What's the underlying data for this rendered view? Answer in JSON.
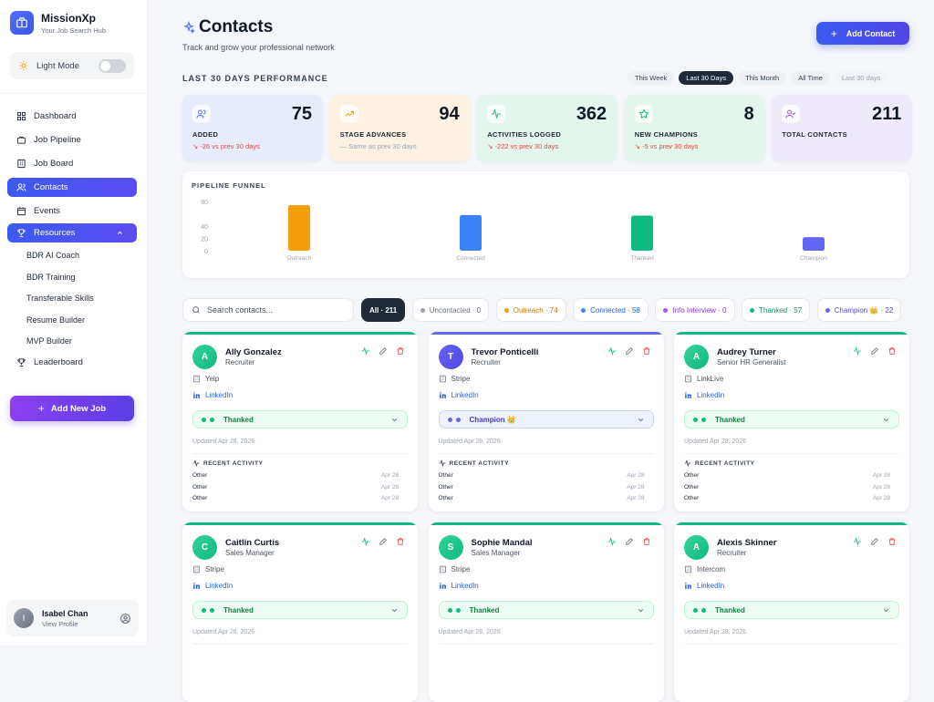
{
  "brand": {
    "name": "MissionXp",
    "tagline": "Your Job Search Hub"
  },
  "mode": {
    "label": "Light Mode"
  },
  "nav": {
    "items": [
      {
        "label": "Dashboard",
        "icon": "dashboard-icon"
      },
      {
        "label": "Job Pipeline",
        "icon": "briefcase-icon"
      },
      {
        "label": "Job Board",
        "icon": "building-icon"
      },
      {
        "label": "Contacts",
        "icon": "users-icon",
        "active": true
      },
      {
        "label": "Events",
        "icon": "calendar-icon"
      }
    ],
    "resources": {
      "label": "Resources",
      "icon": "trophy-icon"
    },
    "sub": [
      "BDR AI Coach",
      "BDR Training",
      "Transferable Skills",
      "Resume Builder",
      "MVP Builder"
    ],
    "leaderboard": {
      "label": "Leaderboard",
      "icon": "trophy-icon"
    }
  },
  "add_job": {
    "label": "Add New Job"
  },
  "profile": {
    "initial": "I",
    "name": "Isabel Chan",
    "sub": "View Profile"
  },
  "header": {
    "title": "Contacts",
    "subtitle": "Track and grow your professional network",
    "add_label": "Add Contact"
  },
  "performance": {
    "title": "LAST 30 DAYS PERFORMANCE",
    "periods": [
      "This Week",
      "Last 30 Days",
      "This Month",
      "All Time",
      "Last 30 days"
    ],
    "active_period": 1,
    "stats": [
      {
        "value": "75",
        "label": "ADDED",
        "delta": "-26 vs prev 30 days",
        "tone": "neg",
        "bg": "#e7ecfb",
        "icon_color": "#4f6ef7"
      },
      {
        "value": "94",
        "label": "STAGE ADVANCES",
        "delta": "Same as prev 30 days",
        "tone": "neu",
        "bg": "#fdf1e2",
        "icon_color": "#f59e0b"
      },
      {
        "value": "362",
        "label": "ACTIVITIES LOGGED",
        "delta": "-222 vs prev 30 days",
        "tone": "neg",
        "bg": "#e2f6ee",
        "icon_color": "#10b981"
      },
      {
        "value": "8",
        "label": "NEW CHAMPIONS",
        "delta": "-5 vs prev 30 days",
        "tone": "neg",
        "bg": "#e4f6ec",
        "icon_color": "#10b981"
      },
      {
        "value": "211",
        "label": "TOTAL CONTACTS",
        "delta": "",
        "tone": "neu",
        "bg": "#efeafb",
        "icon_color": "#a855f7"
      }
    ]
  },
  "chart_data": {
    "type": "bar",
    "title": "PIPELINE FUNNEL",
    "categories": [
      "Outreach",
      "Connected",
      "Thanked",
      "Champion"
    ],
    "values": [
      74,
      58,
      57,
      22
    ],
    "colors": [
      "#f59e0b",
      "#3b82f6",
      "#10b981",
      "#6366f1"
    ],
    "yticks": [
      0,
      20,
      40,
      80
    ],
    "ylim": [
      0,
      80
    ],
    "grid": false
  },
  "search": {
    "placeholder": "Search contacts..."
  },
  "filters": [
    {
      "label": "All · 211",
      "active": true,
      "dot": "",
      "color": "#fff"
    },
    {
      "label": "Uncontacted · 0",
      "dot": "#9ca3af",
      "color": "#6b7280"
    },
    {
      "label": "Outreach · 74",
      "dot": "#f59e0b",
      "color": "#d97706"
    },
    {
      "label": "Connected · 58",
      "dot": "#3b82f6",
      "color": "#2563eb"
    },
    {
      "label": "Info Interview · 0",
      "dot": "#a855f7",
      "color": "#9333ea"
    },
    {
      "label": "Thanked · 57",
      "dot": "#10b981",
      "color": "#059669"
    },
    {
      "label": "Champion 👑 · 22",
      "dot": "#6366f1",
      "color": "#4f46e5"
    }
  ],
  "contacts": [
    {
      "initial": "A",
      "name": "Ally Gonzalez",
      "role": "Recruiter",
      "company": "Yelp",
      "link": "LinkedIn",
      "status": "Thanked",
      "status_type": "thanked",
      "updated": "Updated Apr 28, 2026",
      "recent_title": "RECENT ACTIVITY",
      "activities": [
        {
          "type": "Other",
          "date": "Apr 28"
        },
        {
          "type": "Other",
          "date": "Apr 28"
        },
        {
          "type": "Other",
          "date": "Apr 28"
        }
      ]
    },
    {
      "initial": "T",
      "name": "Trevor Ponticelli",
      "role": "Recruiter",
      "company": "Stripe",
      "link": "LinkedIn",
      "status": "Champion 👑",
      "status_type": "champion",
      "updated": "Updated Apr 28, 2026",
      "recent_title": "RECENT ACTIVITY",
      "activities": [
        {
          "type": "Other",
          "date": "Apr 28"
        },
        {
          "type": "Other",
          "date": "Apr 28"
        },
        {
          "type": "Other",
          "date": "Apr 28"
        }
      ]
    },
    {
      "initial": "A",
      "name": "Audrey Turner",
      "role": "Senior HR Generalist",
      "company": "LinkLive",
      "link": "LinkedIn",
      "status": "Thanked",
      "status_type": "thanked",
      "updated": "Updated Apr 28, 2026",
      "recent_title": "RECENT ACTIVITY",
      "activities": [
        {
          "type": "Other",
          "date": "Apr 28"
        },
        {
          "type": "Other",
          "date": "Apr 28"
        },
        {
          "type": "Other",
          "date": "Apr 28"
        }
      ]
    },
    {
      "initial": "C",
      "name": "Caitlin Curtis",
      "role": "Sales Manager",
      "company": "Stripe",
      "link": "LinkedIn",
      "status": "Thanked",
      "status_type": "thanked",
      "updated": "Updated Apr 28, 2026",
      "recent_title": "",
      "activities": []
    },
    {
      "initial": "S",
      "name": "Sophie Mandal",
      "role": "Sales Manager",
      "company": "Stripe",
      "link": "LinkedIn",
      "status": "Thanked",
      "status_type": "thanked",
      "updated": "Updated Apr 28, 2026",
      "recent_title": "",
      "activities": []
    },
    {
      "initial": "A",
      "name": "Alexis Skinner",
      "role": "Recruiter",
      "company": "Intercom",
      "link": "LinkedIn",
      "status": "Thanked",
      "status_type": "thanked",
      "updated": "Updated Apr 28, 2026",
      "recent_title": "",
      "activities": []
    }
  ]
}
